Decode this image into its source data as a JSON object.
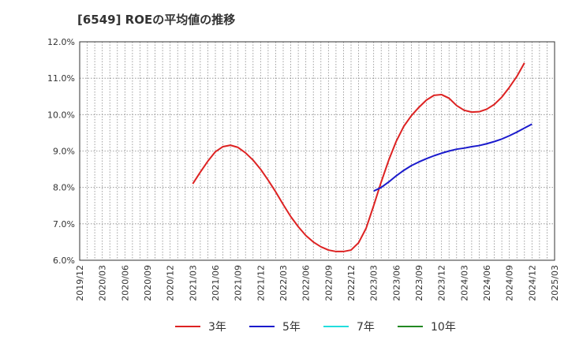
{
  "chart_data": {
    "type": "line",
    "title": "[6549]  ROEの平均値の推移",
    "xlabel": "",
    "ylabel": "",
    "ylim": [
      6.0,
      12.0
    ],
    "y_ticks": [
      "6.0%",
      "7.0%",
      "8.0%",
      "9.0%",
      "10.0%",
      "11.0%",
      "12.0%"
    ],
    "x_ticks": [
      "2019/12",
      "2020/03",
      "2020/06",
      "2020/09",
      "2020/12",
      "2021/03",
      "2021/06",
      "2021/09",
      "2021/12",
      "2022/03",
      "2022/06",
      "2022/09",
      "2022/12",
      "2023/03",
      "2023/06",
      "2023/09",
      "2023/12",
      "2024/03",
      "2024/06",
      "2024/09",
      "2024/12",
      "2025/03"
    ],
    "grid": true,
    "legend_position": "bottom",
    "series": [
      {
        "name": "3年",
        "color": "#dd2222",
        "points": [
          [
            "2021/03",
            8.1
          ],
          [
            "2021/04",
            8.42
          ],
          [
            "2021/05",
            8.72
          ],
          [
            "2021/06",
            8.98
          ],
          [
            "2021/07",
            9.12
          ],
          [
            "2021/08",
            9.16
          ],
          [
            "2021/09",
            9.1
          ],
          [
            "2021/10",
            8.95
          ],
          [
            "2021/11",
            8.75
          ],
          [
            "2021/12",
            8.5
          ],
          [
            "2022/01",
            8.2
          ],
          [
            "2022/02",
            7.88
          ],
          [
            "2022/03",
            7.53
          ],
          [
            "2022/04",
            7.2
          ],
          [
            "2022/05",
            6.92
          ],
          [
            "2022/06",
            6.68
          ],
          [
            "2022/07",
            6.5
          ],
          [
            "2022/08",
            6.37
          ],
          [
            "2022/09",
            6.28
          ],
          [
            "2022/10",
            6.24
          ],
          [
            "2022/11",
            6.24
          ],
          [
            "2022/12",
            6.28
          ],
          [
            "2023/01",
            6.48
          ],
          [
            "2023/02",
            6.88
          ],
          [
            "2023/03",
            7.5
          ],
          [
            "2023/04",
            8.15
          ],
          [
            "2023/05",
            8.75
          ],
          [
            "2023/06",
            9.27
          ],
          [
            "2023/07",
            9.68
          ],
          [
            "2023/08",
            9.97
          ],
          [
            "2023/09",
            10.2
          ],
          [
            "2023/10",
            10.4
          ],
          [
            "2023/11",
            10.53
          ],
          [
            "2023/12",
            10.55
          ],
          [
            "2024/01",
            10.45
          ],
          [
            "2024/02",
            10.25
          ],
          [
            "2024/03",
            10.12
          ],
          [
            "2024/04",
            10.07
          ],
          [
            "2024/05",
            10.08
          ],
          [
            "2024/06",
            10.15
          ],
          [
            "2024/07",
            10.28
          ],
          [
            "2024/08",
            10.48
          ],
          [
            "2024/09",
            10.75
          ],
          [
            "2024/10",
            11.05
          ],
          [
            "2024/11",
            11.42
          ]
        ]
      },
      {
        "name": "5年",
        "color": "#1a1acc",
        "points": [
          [
            "2023/03",
            7.9
          ],
          [
            "2023/04",
            8.0
          ],
          [
            "2023/05",
            8.15
          ],
          [
            "2023/06",
            8.32
          ],
          [
            "2023/07",
            8.47
          ],
          [
            "2023/08",
            8.6
          ],
          [
            "2023/09",
            8.7
          ],
          [
            "2023/10",
            8.79
          ],
          [
            "2023/11",
            8.87
          ],
          [
            "2023/12",
            8.94
          ],
          [
            "2024/01",
            9.0
          ],
          [
            "2024/02",
            9.05
          ],
          [
            "2024/03",
            9.08
          ],
          [
            "2024/04",
            9.12
          ],
          [
            "2024/05",
            9.15
          ],
          [
            "2024/06",
            9.2
          ],
          [
            "2024/07",
            9.26
          ],
          [
            "2024/08",
            9.33
          ],
          [
            "2024/09",
            9.42
          ],
          [
            "2024/10",
            9.52
          ],
          [
            "2024/11",
            9.63
          ],
          [
            "2024/12",
            9.74
          ]
        ]
      },
      {
        "name": "7年",
        "color": "#22dddd",
        "points": []
      },
      {
        "name": "10年",
        "color": "#228822",
        "points": []
      }
    ]
  }
}
